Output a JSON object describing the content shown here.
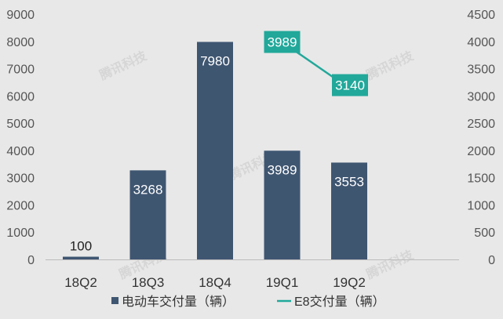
{
  "chart_data": {
    "type": "bar",
    "categories": [
      "18Q2",
      "18Q3",
      "18Q4",
      "19Q1",
      "19Q2"
    ],
    "series": [
      {
        "name": "电动车交付量（辆）",
        "type": "bar",
        "axis": "left",
        "values": [
          100,
          3268,
          7980,
          3989,
          3553
        ],
        "data_labels": [
          "100",
          "3268",
          "7980",
          "3989",
          "3553"
        ],
        "color": "#3f5671"
      },
      {
        "name": "E8交付量（辆）",
        "type": "line",
        "axis": "right",
        "values": [
          null,
          null,
          null,
          3989,
          3140
        ],
        "data_labels": [
          "3989",
          "3140"
        ],
        "color": "#21a89a"
      }
    ],
    "y_left": {
      "lim": [
        0,
        9000
      ],
      "ticks": [
        "0",
        "1000",
        "2000",
        "3000",
        "4000",
        "5000",
        "6000",
        "7000",
        "8000",
        "9000"
      ]
    },
    "y_right": {
      "lim": [
        0,
        4500
      ],
      "ticks": [
        "0",
        "500",
        "1000",
        "1500",
        "2000",
        "2500",
        "3000",
        "3500",
        "4000",
        "4500"
      ]
    },
    "legend_position": "bottom",
    "grid": false,
    "title": "",
    "xlabel": "",
    "ylabel": ""
  },
  "watermark": "腾讯科技"
}
